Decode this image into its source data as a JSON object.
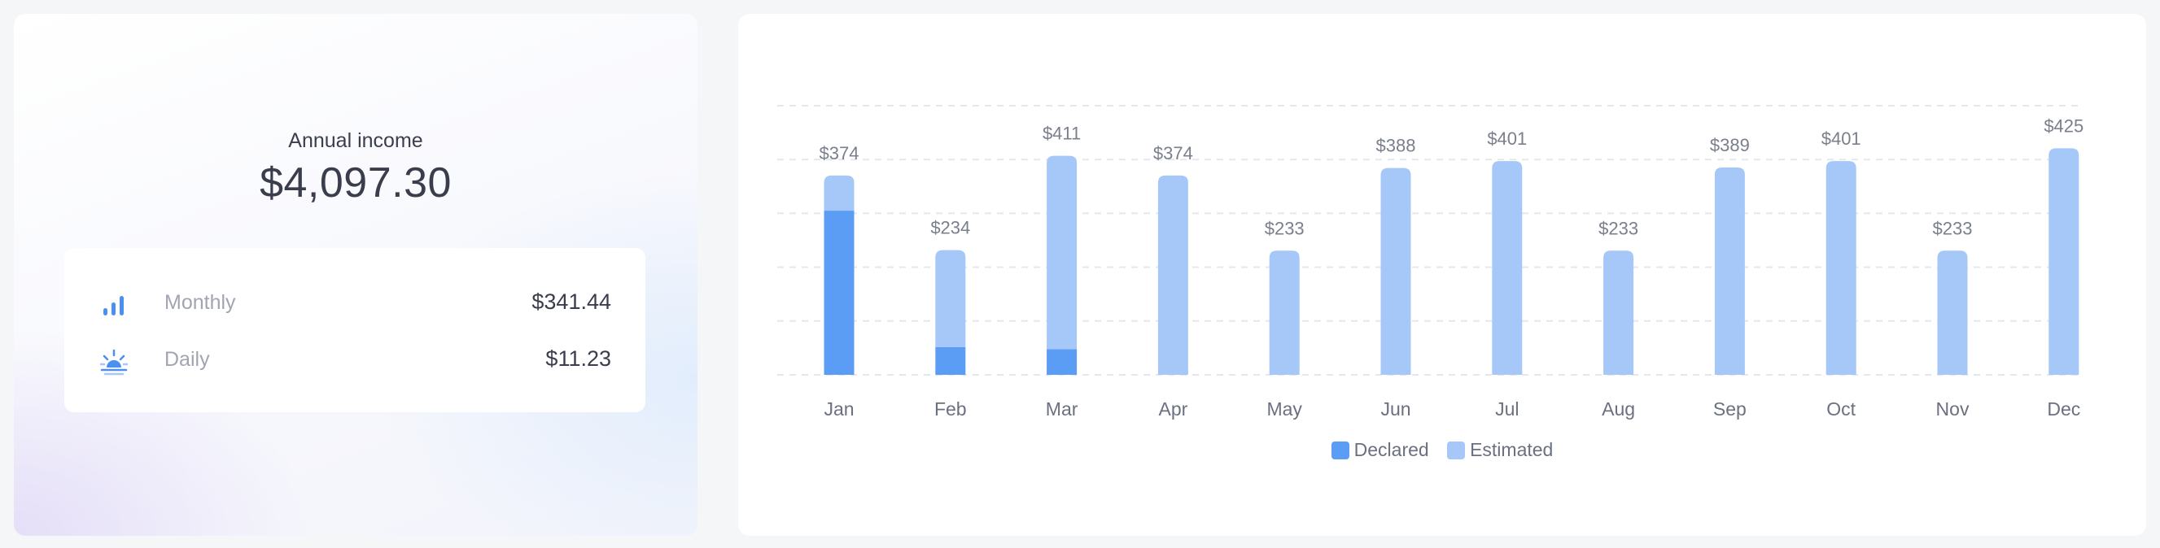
{
  "summary": {
    "annual_label": "Annual income",
    "annual_value": "$4,097.30",
    "rows": [
      {
        "label": "Monthly",
        "value": "$341.44",
        "icon": "bar-chart-icon"
      },
      {
        "label": "Daily",
        "value": "$11.23",
        "icon": "sunrise-icon"
      }
    ]
  },
  "colors": {
    "declared": "#5b9cf5",
    "estimated": "#a5c8f8",
    "grid": "#e5e7ec",
    "label": "#7a7f8c",
    "axis_label": "#6b7080",
    "icon_blue": "#4a90f0"
  },
  "legend": {
    "declared_label": "Declared",
    "estimated_label": "Estimated"
  },
  "chart_data": {
    "type": "bar",
    "stacked": true,
    "categories": [
      "Jan",
      "Feb",
      "Mar",
      "Apr",
      "May",
      "Jun",
      "Jul",
      "Aug",
      "Sep",
      "Oct",
      "Nov",
      "Dec"
    ],
    "totals_labels": [
      "$374",
      "$234",
      "$411",
      "$374",
      "$233",
      "$388",
      "$401",
      "$233",
      "$389",
      "$401",
      "$233",
      "$425"
    ],
    "series": [
      {
        "name": "Declared",
        "values": [
          308,
          52,
          48,
          0,
          0,
          0,
          0,
          0,
          0,
          0,
          0,
          0
        ]
      },
      {
        "name": "Estimated",
        "values": [
          66,
          182,
          363,
          374,
          233,
          388,
          401,
          233,
          389,
          401,
          233,
          425
        ]
      }
    ],
    "ylim": [
      0,
      505
    ],
    "grid": true,
    "legend_position": "bottom"
  }
}
